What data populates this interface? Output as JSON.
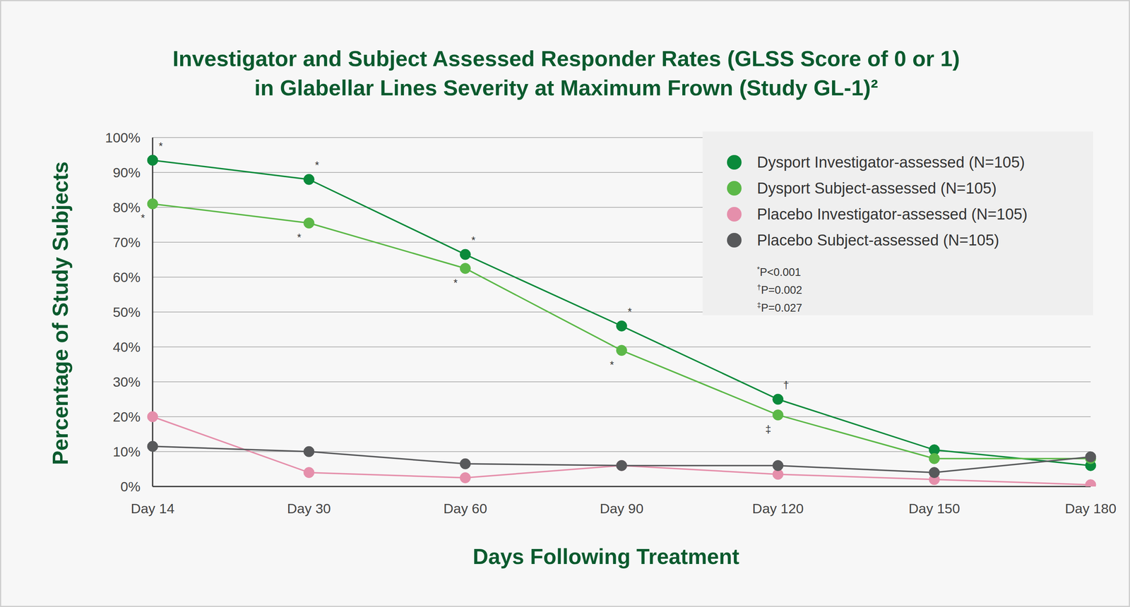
{
  "chart_data": {
    "type": "line",
    "title": [
      "Investigator and Subject Assessed Responder Rates (GLSS Score of 0 or 1)",
      "in Glabellar Lines Severity at Maximum Frown (Study GL-1)²"
    ],
    "x_label": "Days Following Treatment",
    "y_label": "Percentage of Study Subjects",
    "categories": [
      "Day 14",
      "Day 30",
      "Day 60",
      "Day 90",
      "Day 120",
      "Day 150",
      "Day 180"
    ],
    "series": [
      {
        "name": "Dysport Investigator-assessed (N=105)",
        "color": "#0b8a3b",
        "marker": "circle",
        "line_style": "solid",
        "values": [
          93.5,
          88,
          66.5,
          46,
          25,
          10.5,
          6
        ],
        "significance": [
          "*",
          "*",
          "*",
          "*",
          "†",
          null,
          null
        ]
      },
      {
        "name": "Dysport Subject-assessed (N=105)",
        "color": "#5cb848",
        "marker": "circle",
        "line_style": "solid",
        "values": [
          81,
          75.5,
          62.5,
          39,
          20.5,
          8,
          8
        ],
        "significance": [
          "*",
          "*",
          "*",
          "*",
          "‡",
          null,
          null
        ]
      },
      {
        "name": "Placebo Investigator-assessed (N=105)",
        "color": "#e58fab",
        "marker": "circle",
        "line_style": "solid",
        "values": [
          20,
          4,
          2.5,
          6,
          3.5,
          2,
          0.5
        ]
      },
      {
        "name": "Placebo Subject-assessed (N=105)",
        "color": "#58595b",
        "marker": "circle",
        "line_style": "solid",
        "values": [
          11.5,
          10,
          6.5,
          6,
          6,
          4,
          8.5
        ]
      }
    ],
    "ylim": [
      0,
      100
    ],
    "yticks": [
      {
        "value": 0,
        "label": "0%"
      },
      {
        "value": 10,
        "label": "10%"
      },
      {
        "value": 20,
        "label": "20%"
      },
      {
        "value": 30,
        "label": "30%"
      },
      {
        "value": 40,
        "label": "40%"
      },
      {
        "value": 50,
        "label": "50%"
      },
      {
        "value": 60,
        "label": "60%"
      },
      {
        "value": 70,
        "label": "70%"
      },
      {
        "value": 80,
        "label": "80%"
      },
      {
        "value": 90,
        "label": "90%"
      },
      {
        "value": 100,
        "label": "100%"
      }
    ],
    "grid": true,
    "legend": "upper right",
    "annotations": [
      "*P<0.001",
      "†P=0.002",
      "‡P=0.027"
    ]
  }
}
